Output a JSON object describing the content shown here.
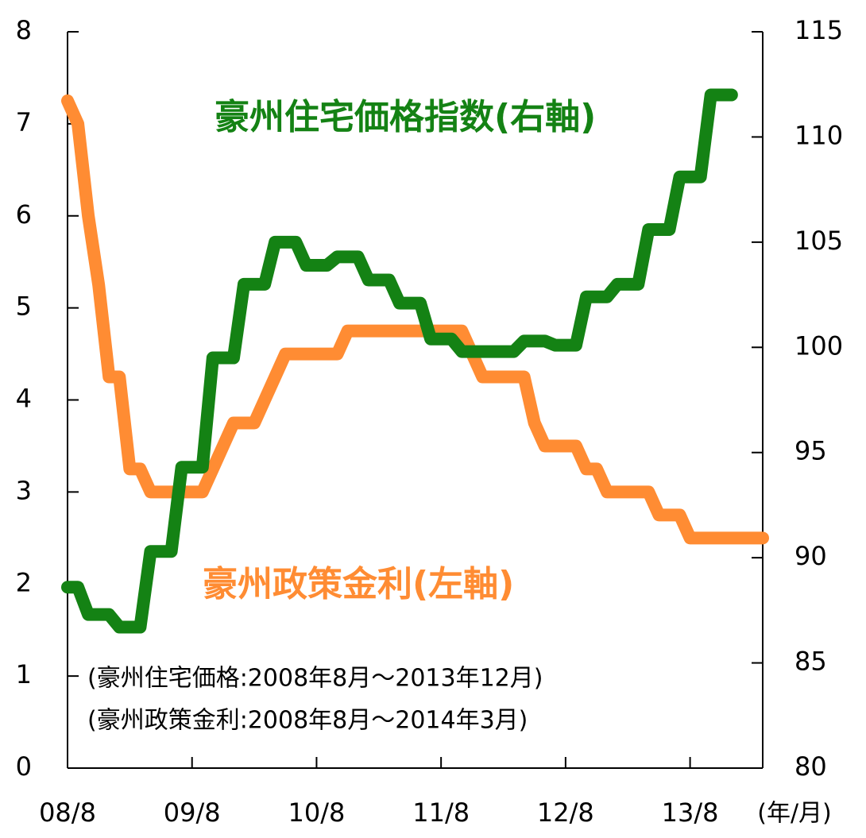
{
  "chart_data": {
    "type": "line",
    "x": [
      0,
      1,
      2,
      3,
      4,
      5,
      6,
      7,
      8,
      9,
      10,
      11,
      12,
      13,
      14,
      15,
      16,
      17,
      18,
      19,
      20,
      21,
      22,
      23,
      24,
      25,
      26,
      27,
      28,
      29,
      30,
      31,
      32,
      33,
      34,
      35,
      36,
      37,
      38,
      39,
      40,
      41,
      42,
      43,
      44,
      45,
      46,
      47,
      48,
      49,
      50,
      51,
      52,
      53,
      54,
      55,
      56,
      57,
      58,
      59,
      60,
      61,
      62,
      63,
      64,
      65,
      66,
      67
    ],
    "xlim": [
      0,
      67
    ],
    "xticks": [
      {
        "value": 0,
        "label": "08/8"
      },
      {
        "value": 12,
        "label": "09/8"
      },
      {
        "value": 24,
        "label": "10/8"
      },
      {
        "value": 36,
        "label": "11/8"
      },
      {
        "value": 48,
        "label": "12/8"
      },
      {
        "value": 60,
        "label": "13/8"
      }
    ],
    "xlabel": "(年/月)",
    "ylim": [
      0,
      8
    ],
    "yticks": [
      0,
      1,
      2,
      3,
      4,
      5,
      6,
      7,
      8
    ],
    "y2lim": [
      80,
      115
    ],
    "y2ticks": [
      80,
      85,
      90,
      95,
      100,
      105,
      110,
      115
    ],
    "series": [
      {
        "name": "豪州政策金利(左軸)",
        "label": "豪州政策金利(左軸)",
        "color": "#ff8c33",
        "values": [
          7.25,
          7.0,
          6.0,
          5.25,
          4.25,
          4.25,
          3.25,
          3.25,
          3.0,
          3.0,
          3.0,
          3.0,
          3.0,
          3.0,
          3.25,
          3.5,
          3.75,
          3.75,
          3.75,
          4.0,
          4.25,
          4.5,
          4.5,
          4.5,
          4.5,
          4.5,
          4.5,
          4.75,
          4.75,
          4.75,
          4.75,
          4.75,
          4.75,
          4.75,
          4.75,
          4.75,
          4.75,
          4.75,
          4.75,
          4.5,
          4.25,
          4.25,
          4.25,
          4.25,
          4.25,
          3.75,
          3.5,
          3.5,
          3.5,
          3.5,
          3.25,
          3.25,
          3.0,
          3.0,
          3.0,
          3.0,
          3.0,
          2.75,
          2.75,
          2.75,
          2.5,
          2.5,
          2.5,
          2.5,
          2.5,
          2.5,
          2.5,
          2.5
        ]
      },
      {
        "name": "豪州住宅価格指数(右軸)",
        "label": "豪州住宅価格指数(右軸)",
        "color": "#148214",
        "axis": "y2",
        "values": [
          88.6,
          88.6,
          87.3,
          87.3,
          87.3,
          86.7,
          86.7,
          86.7,
          90.3,
          90.3,
          90.3,
          94.3,
          94.3,
          94.3,
          99.5,
          99.5,
          99.5,
          103,
          103,
          103,
          105,
          105,
          105,
          103.9,
          103.9,
          103.9,
          104.3,
          104.3,
          104.3,
          103.2,
          103.2,
          103.2,
          102.1,
          102.1,
          102.1,
          100.4,
          100.4,
          100.4,
          99.8,
          99.8,
          99.8,
          99.8,
          99.8,
          99.8,
          100.3,
          100.3,
          100.3,
          100.1,
          100.1,
          100.1,
          102.4,
          102.4,
          102.4,
          103,
          103,
          103,
          105.6,
          105.6,
          105.6,
          108.1,
          108.1,
          108.1,
          112,
          112,
          112,
          null,
          null,
          null
        ]
      }
    ],
    "annotations": [
      "(豪州住宅価格:2008年8月〜2013年12月)",
      "(豪州政策金利:2008年8月〜2014年3月)"
    ]
  }
}
